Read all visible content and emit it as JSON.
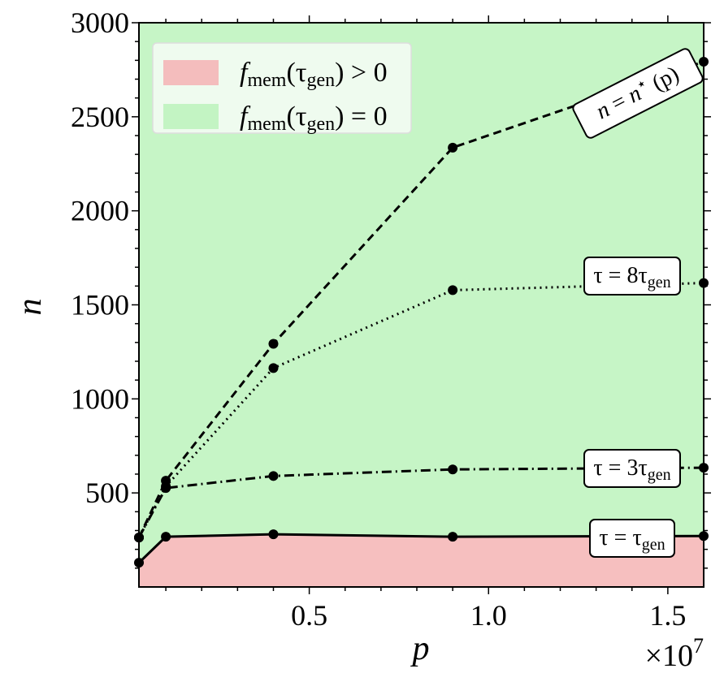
{
  "chart_data": {
    "type": "line",
    "title": "",
    "xlabel": "p",
    "ylabel": "n",
    "x_multiplier_label": "×10",
    "x_multiplier_exp": "7",
    "xlim": [
      250000,
      16000000
    ],
    "ylim": [
      0,
      3000
    ],
    "x": [
      250000,
      1000000,
      4000000,
      9000000,
      16000000
    ],
    "x_ticks": [
      5000000,
      10000000,
      15000000
    ],
    "x_tick_labels": [
      "0.5",
      "1.0",
      "1.5"
    ],
    "y_ticks": [
      500,
      1000,
      1500,
      2000,
      2500,
      3000
    ],
    "y_tick_labels": [
      "500",
      "1000",
      "1500",
      "2000",
      "2500",
      "3000"
    ],
    "grid": false,
    "regions": [
      {
        "name": "f_mem(tau_gen) > 0",
        "color": "#f6bfbf",
        "below_series": "tau=tau_gen"
      },
      {
        "name": "f_mem(tau_gen) = 0",
        "color": "#c6f5c6"
      }
    ],
    "legend": {
      "placement": "top-left",
      "entries": [
        {
          "color": "#f4bdbd",
          "parts": [
            {
              "t": "f",
              "i": true
            },
            {
              "t": "mem",
              "sub": true
            },
            {
              "t": "(τ"
            },
            {
              "t": "gen",
              "sub": true
            },
            {
              "t": ") > 0"
            }
          ]
        },
        {
          "color": "#c3f4c3",
          "parts": [
            {
              "t": "f",
              "i": true
            },
            {
              "t": "mem",
              "sub": true
            },
            {
              "t": "(τ"
            },
            {
              "t": "gen",
              "sub": true
            },
            {
              "t": ") = 0"
            }
          ]
        }
      ]
    },
    "series": [
      {
        "name": "n = n*(p)",
        "style": "dashed",
        "values": [
          263,
          565,
          1293,
          2336,
          2793
        ],
        "label_parts": [
          {
            "t": "n",
            "i": true
          },
          {
            "t": " = "
          },
          {
            "t": "n",
            "i": true
          },
          {
            "t": "⋆",
            "sup": true
          },
          {
            "t": " (p)"
          }
        ]
      },
      {
        "name": "tau = 8 tau_gen",
        "style": "dotted",
        "values": [
          263,
          535,
          1164,
          1578,
          1616
        ],
        "label_parts": [
          {
            "t": "τ = 8τ"
          },
          {
            "t": "gen",
            "sub": true
          }
        ]
      },
      {
        "name": "tau = 3 tau_gen",
        "style": "dashdot",
        "values": [
          263,
          526,
          590,
          625,
          634
        ],
        "label_parts": [
          {
            "t": "τ = 3τ"
          },
          {
            "t": "gen",
            "sub": true
          }
        ]
      },
      {
        "name": "tau = tau_gen",
        "style": "solid",
        "values": [
          129,
          267,
          280,
          267,
          271
        ],
        "label_parts": [
          {
            "t": "τ = τ"
          },
          {
            "t": "gen",
            "sub": true
          }
        ]
      }
    ]
  }
}
